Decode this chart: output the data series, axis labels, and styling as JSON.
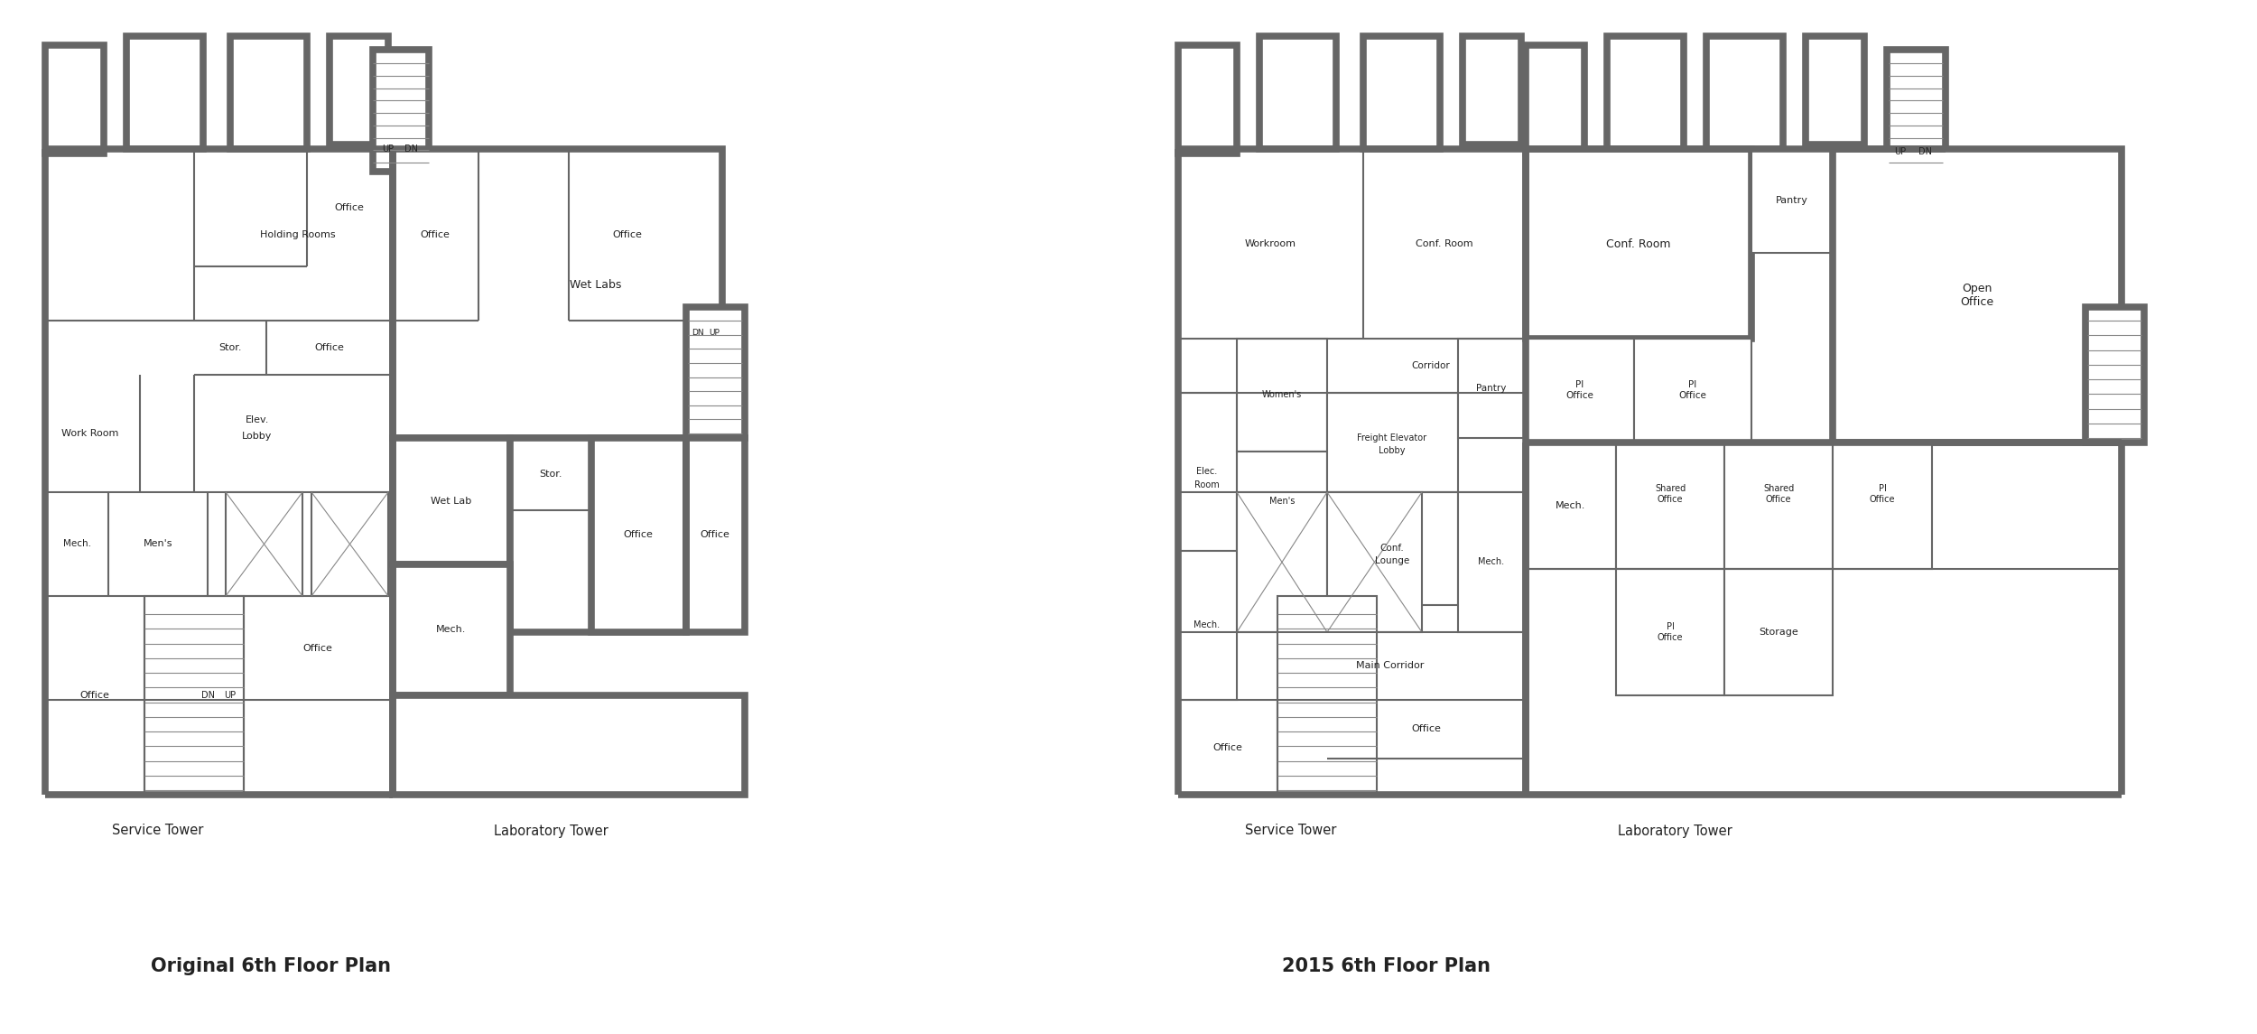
{
  "title_left": "Original 6th Floor Plan",
  "title_right": "2015 6th Floor Plan",
  "sub_left_svc": "Service Tower",
  "sub_left_lab": "Laboratory Tower",
  "sub_right_svc": "Service Tower",
  "sub_right_lab": "Laboratory Tower",
  "wall_color": "#666666",
  "wall_lw": 5.5,
  "inner_lw": 1.5,
  "bg": "#ffffff",
  "tc": "#222222",
  "title_fs": 15,
  "label_fs": 8.5,
  "sub_fs": 10.5
}
